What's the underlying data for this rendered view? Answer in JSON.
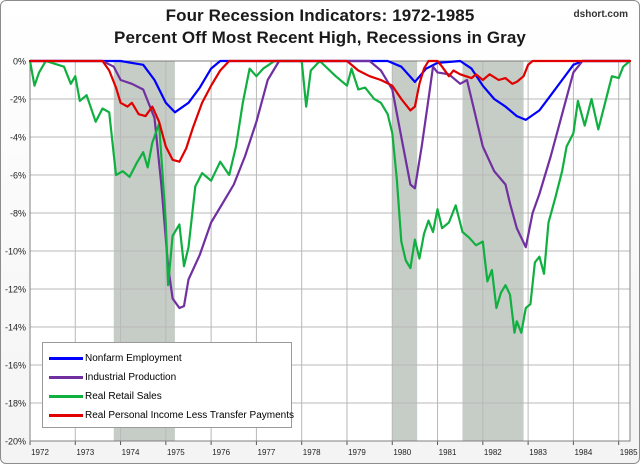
{
  "title_line1": "Four Recession Indicators: 1972-1985",
  "title_line2": "Percent Off Most Recent High, Recessions in Gray",
  "source": "dshort.com",
  "chart_data": {
    "type": "line",
    "title": "Four Recession Indicators: 1972-1985 Percent Off Most Recent High, Recessions in Gray",
    "xlabel": "",
    "ylabel": "",
    "x_ticks": [
      "1972",
      "1973",
      "1974",
      "1975",
      "1976",
      "1977",
      "1978",
      "1979",
      "1980",
      "1981",
      "1982",
      "1983",
      "1984",
      "1985"
    ],
    "y_ticks": [
      "0%",
      "-2%",
      "-4%",
      "-6%",
      "-8%",
      "-10%",
      "-12%",
      "-14%",
      "-16%",
      "-18%",
      "-20%"
    ],
    "xlim": [
      1972,
      1985.25
    ],
    "ylim": [
      -20,
      0
    ],
    "grid": true,
    "legend_position": "bottom-left",
    "recessions": [
      [
        1973.85,
        1975.2
      ],
      [
        1980.0,
        1980.55
      ],
      [
        1981.55,
        1982.9
      ]
    ],
    "recession_color": "#c6cdc6",
    "series": [
      {
        "name": "Nonfarm Employment",
        "color": "#0000ff",
        "points": [
          [
            1972,
            0
          ],
          [
            1973,
            0
          ],
          [
            1974,
            0
          ],
          [
            1974.5,
            -0.2
          ],
          [
            1974.75,
            -1
          ],
          [
            1975.0,
            -2.2
          ],
          [
            1975.2,
            -2.7
          ],
          [
            1975.5,
            -2.2
          ],
          [
            1975.75,
            -1.4
          ],
          [
            1976.0,
            -0.4
          ],
          [
            1976.2,
            0
          ],
          [
            1979,
            0
          ],
          [
            1979.9,
            0
          ],
          [
            1980.2,
            -0.3
          ],
          [
            1980.5,
            -1.1
          ],
          [
            1980.75,
            -0.4
          ],
          [
            1981.0,
            -0.1
          ],
          [
            1981.5,
            0
          ],
          [
            1981.75,
            -0.4
          ],
          [
            1982.0,
            -1.3
          ],
          [
            1982.25,
            -2.0
          ],
          [
            1982.5,
            -2.4
          ],
          [
            1982.75,
            -2.9
          ],
          [
            1982.95,
            -3.1
          ],
          [
            1983.25,
            -2.6
          ],
          [
            1983.5,
            -1.8
          ],
          [
            1983.75,
            -1.0
          ],
          [
            1984.0,
            -0.2
          ],
          [
            1984.2,
            0
          ],
          [
            1985.25,
            0
          ]
        ]
      },
      {
        "name": "Industrial Production",
        "color": "#7030a0",
        "points": [
          [
            1972,
            0
          ],
          [
            1973.6,
            0
          ],
          [
            1973.85,
            -0.3
          ],
          [
            1974.0,
            -1.0
          ],
          [
            1974.25,
            -1.2
          ],
          [
            1974.5,
            -1.5
          ],
          [
            1974.75,
            -3.0
          ],
          [
            1974.9,
            -6.5
          ],
          [
            1975.05,
            -10.8
          ],
          [
            1975.15,
            -12.5
          ],
          [
            1975.3,
            -13.0
          ],
          [
            1975.4,
            -12.9
          ],
          [
            1975.5,
            -11.5
          ],
          [
            1975.75,
            -10.2
          ],
          [
            1976.0,
            -8.5
          ],
          [
            1976.25,
            -7.5
          ],
          [
            1976.5,
            -6.5
          ],
          [
            1976.75,
            -5.0
          ],
          [
            1977.0,
            -3.2
          ],
          [
            1977.25,
            -1.0
          ],
          [
            1977.5,
            0
          ],
          [
            1979.5,
            0
          ],
          [
            1979.75,
            -0.5
          ],
          [
            1980.0,
            -1.5
          ],
          [
            1980.2,
            -4.0
          ],
          [
            1980.4,
            -6.5
          ],
          [
            1980.5,
            -6.7
          ],
          [
            1980.65,
            -4.5
          ],
          [
            1980.8,
            -2.0
          ],
          [
            1980.9,
            -0.3
          ],
          [
            1981.0,
            -0.6
          ],
          [
            1981.25,
            -0.7
          ],
          [
            1981.5,
            -1.2
          ],
          [
            1981.65,
            -1.0
          ],
          [
            1981.8,
            -2.5
          ],
          [
            1982.0,
            -4.5
          ],
          [
            1982.25,
            -5.8
          ],
          [
            1982.5,
            -6.5
          ],
          [
            1982.6,
            -7.5
          ],
          [
            1982.75,
            -8.8
          ],
          [
            1982.95,
            -9.8
          ],
          [
            1983.1,
            -8.0
          ],
          [
            1983.25,
            -7.0
          ],
          [
            1983.5,
            -5.0
          ],
          [
            1983.75,
            -2.8
          ],
          [
            1984.0,
            -0.6
          ],
          [
            1984.2,
            0
          ],
          [
            1985.25,
            0
          ]
        ]
      },
      {
        "name": "Real Retail Sales",
        "color": "#10b040",
        "points": [
          [
            1972,
            0
          ],
          [
            1972.1,
            -1.3
          ],
          [
            1972.2,
            -0.6
          ],
          [
            1972.35,
            0
          ],
          [
            1972.75,
            -0.3
          ],
          [
            1972.9,
            -1.2
          ],
          [
            1973.0,
            -0.8
          ],
          [
            1973.1,
            -2.1
          ],
          [
            1973.25,
            -1.8
          ],
          [
            1973.45,
            -3.2
          ],
          [
            1973.6,
            -2.5
          ],
          [
            1973.75,
            -2.7
          ],
          [
            1973.9,
            -6.0
          ],
          [
            1974.05,
            -5.8
          ],
          [
            1974.2,
            -6.1
          ],
          [
            1974.35,
            -5.4
          ],
          [
            1974.5,
            -4.8
          ],
          [
            1974.6,
            -5.6
          ],
          [
            1974.7,
            -4.3
          ],
          [
            1974.85,
            -3.3
          ],
          [
            1975.0,
            -8.5
          ],
          [
            1975.05,
            -11.8
          ],
          [
            1975.15,
            -9.2
          ],
          [
            1975.3,
            -8.6
          ],
          [
            1975.4,
            -10.8
          ],
          [
            1975.5,
            -9.8
          ],
          [
            1975.65,
            -6.6
          ],
          [
            1975.8,
            -5.9
          ],
          [
            1976.0,
            -6.3
          ],
          [
            1976.2,
            -5.3
          ],
          [
            1976.4,
            -6.0
          ],
          [
            1976.55,
            -4.5
          ],
          [
            1976.7,
            -2.2
          ],
          [
            1976.85,
            -0.4
          ],
          [
            1977.0,
            -0.8
          ],
          [
            1977.15,
            -0.4
          ],
          [
            1977.4,
            0
          ],
          [
            1978.0,
            0
          ],
          [
            1978.1,
            -2.4
          ],
          [
            1978.2,
            -0.5
          ],
          [
            1978.4,
            0
          ],
          [
            1978.75,
            -0.8
          ],
          [
            1979.0,
            -1.3
          ],
          [
            1979.1,
            -0.4
          ],
          [
            1979.25,
            -1.5
          ],
          [
            1979.4,
            -1.4
          ],
          [
            1979.6,
            -2.0
          ],
          [
            1979.75,
            -2.2
          ],
          [
            1979.9,
            -2.8
          ],
          [
            1980.0,
            -3.8
          ],
          [
            1980.1,
            -6.2
          ],
          [
            1980.2,
            -9.5
          ],
          [
            1980.3,
            -10.5
          ],
          [
            1980.4,
            -10.9
          ],
          [
            1980.5,
            -9.4
          ],
          [
            1980.6,
            -10.4
          ],
          [
            1980.7,
            -9.1
          ],
          [
            1980.8,
            -8.4
          ],
          [
            1980.9,
            -9.0
          ],
          [
            1981.0,
            -7.8
          ],
          [
            1981.1,
            -8.8
          ],
          [
            1981.25,
            -8.5
          ],
          [
            1981.4,
            -7.6
          ],
          [
            1981.55,
            -9.0
          ],
          [
            1981.7,
            -9.3
          ],
          [
            1981.85,
            -9.7
          ],
          [
            1982.0,
            -9.5
          ],
          [
            1982.1,
            -11.6
          ],
          [
            1982.2,
            -11.0
          ],
          [
            1982.3,
            -13.0
          ],
          [
            1982.4,
            -12.2
          ],
          [
            1982.5,
            -11.8
          ],
          [
            1982.6,
            -12.3
          ],
          [
            1982.7,
            -14.3
          ],
          [
            1982.75,
            -13.7
          ],
          [
            1982.85,
            -14.3
          ],
          [
            1982.95,
            -13.0
          ],
          [
            1983.05,
            -12.8
          ],
          [
            1983.15,
            -10.6
          ],
          [
            1983.25,
            -10.3
          ],
          [
            1983.35,
            -11.2
          ],
          [
            1983.45,
            -8.5
          ],
          [
            1983.6,
            -7.2
          ],
          [
            1983.75,
            -5.8
          ],
          [
            1983.85,
            -4.5
          ],
          [
            1984.0,
            -3.8
          ],
          [
            1984.1,
            -2.1
          ],
          [
            1984.25,
            -3.4
          ],
          [
            1984.4,
            -2.0
          ],
          [
            1984.55,
            -3.6
          ],
          [
            1984.7,
            -2.2
          ],
          [
            1984.85,
            -0.8
          ],
          [
            1985.0,
            -0.9
          ],
          [
            1985.1,
            -0.3
          ],
          [
            1985.25,
            0
          ]
        ]
      },
      {
        "name": "Real Personal Income Less Transfer Payments",
        "color": "#e00000",
        "points": [
          [
            1972,
            0
          ],
          [
            1973.6,
            0
          ],
          [
            1973.75,
            -0.5
          ],
          [
            1973.9,
            -1.4
          ],
          [
            1974.0,
            -2.2
          ],
          [
            1974.15,
            -2.4
          ],
          [
            1974.25,
            -2.2
          ],
          [
            1974.4,
            -2.8
          ],
          [
            1974.55,
            -2.9
          ],
          [
            1974.7,
            -2.4
          ],
          [
            1974.85,
            -3.2
          ],
          [
            1975.0,
            -4.5
          ],
          [
            1975.15,
            -5.2
          ],
          [
            1975.3,
            -5.3
          ],
          [
            1975.45,
            -4.6
          ],
          [
            1975.6,
            -3.5
          ],
          [
            1975.8,
            -2.2
          ],
          [
            1976.0,
            -1.3
          ],
          [
            1976.2,
            -0.5
          ],
          [
            1976.4,
            0
          ],
          [
            1979.0,
            0
          ],
          [
            1979.25,
            -0.5
          ],
          [
            1979.5,
            -0.8
          ],
          [
            1979.75,
            -1.0
          ],
          [
            1980.0,
            -1.3
          ],
          [
            1980.2,
            -2.0
          ],
          [
            1980.4,
            -2.6
          ],
          [
            1980.5,
            -2.4
          ],
          [
            1980.6,
            -1.2
          ],
          [
            1980.7,
            -0.4
          ],
          [
            1980.8,
            0
          ],
          [
            1981.0,
            0
          ],
          [
            1981.1,
            -0.3
          ],
          [
            1981.25,
            -0.8
          ],
          [
            1981.35,
            -0.5
          ],
          [
            1981.5,
            -0.7
          ],
          [
            1981.75,
            -0.9
          ],
          [
            1981.85,
            -0.7
          ],
          [
            1982.0,
            -1.0
          ],
          [
            1982.15,
            -0.7
          ],
          [
            1982.35,
            -1.0
          ],
          [
            1982.5,
            -0.9
          ],
          [
            1982.65,
            -1.2
          ],
          [
            1982.75,
            -1.1
          ],
          [
            1982.9,
            -0.8
          ],
          [
            1983.0,
            -0.2
          ],
          [
            1983.1,
            0
          ],
          [
            1985.25,
            0
          ]
        ]
      }
    ]
  }
}
